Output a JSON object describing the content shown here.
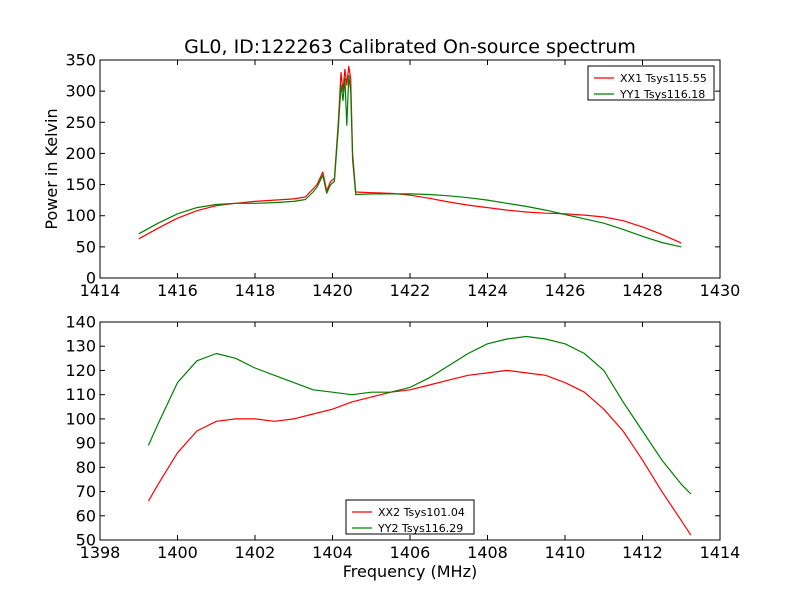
{
  "chart_data": [
    {
      "type": "line",
      "title": "GL0, ID:122263 Calibrated On-source spectrum",
      "xlabel": "",
      "ylabel": "Power in Kelvin",
      "xlim": [
        1414,
        1430
      ],
      "ylim": [
        0,
        350
      ],
      "xticks": [
        "1414",
        "1416",
        "1418",
        "1420",
        "1422",
        "1424",
        "1426",
        "1428",
        "1430"
      ],
      "yticks": [
        "0",
        "50",
        "100",
        "150",
        "200",
        "250",
        "300",
        "350"
      ],
      "legend_position": "top-right",
      "series": [
        {
          "name": "XX1 Tsys115.55",
          "color": "#ff0000",
          "x": [
            1415.0,
            1415.5,
            1416.0,
            1416.5,
            1417.0,
            1417.5,
            1418.0,
            1418.5,
            1419.0,
            1419.3,
            1419.5,
            1419.6,
            1419.75,
            1419.85,
            1419.95,
            1420.05,
            1420.15,
            1420.22,
            1420.27,
            1420.32,
            1420.37,
            1420.42,
            1420.47,
            1420.52,
            1420.6,
            1421.0,
            1421.5,
            1422.0,
            1422.5,
            1423.0,
            1423.5,
            1424.0,
            1424.5,
            1425.0,
            1425.5,
            1426.0,
            1426.5,
            1427.0,
            1427.5,
            1428.0,
            1428.5,
            1429.0
          ],
          "values": [
            63,
            80,
            96,
            108,
            116,
            120,
            123,
            125,
            127,
            130,
            143,
            150,
            170,
            140,
            155,
            160,
            250,
            330,
            300,
            335,
            310,
            340,
            320,
            200,
            138,
            137,
            136,
            133,
            128,
            122,
            117,
            113,
            109,
            106,
            104,
            103,
            101,
            98,
            92,
            82,
            70,
            56
          ]
        },
        {
          "name": "YY1 Tsys116.18",
          "color": "#008000",
          "x": [
            1415.0,
            1415.5,
            1416.0,
            1416.5,
            1417.0,
            1417.5,
            1418.0,
            1418.5,
            1419.0,
            1419.3,
            1419.5,
            1419.6,
            1419.75,
            1419.85,
            1419.95,
            1420.05,
            1420.15,
            1420.22,
            1420.27,
            1420.32,
            1420.37,
            1420.42,
            1420.47,
            1420.52,
            1420.6,
            1421.0,
            1421.5,
            1422.0,
            1422.5,
            1423.0,
            1423.5,
            1424.0,
            1424.5,
            1425.0,
            1425.5,
            1426.0,
            1426.5,
            1427.0,
            1427.5,
            1428.0,
            1428.5,
            1429.0
          ],
          "values": [
            71,
            88,
            103,
            113,
            118,
            120,
            120,
            121,
            123,
            126,
            138,
            146,
            165,
            136,
            150,
            155,
            240,
            310,
            285,
            320,
            245,
            325,
            300,
            190,
            134,
            135,
            135,
            135,
            134,
            132,
            129,
            125,
            120,
            115,
            109,
            102,
            95,
            88,
            78,
            67,
            57,
            50
          ]
        }
      ]
    },
    {
      "type": "line",
      "title": "",
      "xlabel": "Frequency (MHz)",
      "ylabel": "",
      "xlim": [
        1398,
        1414
      ],
      "ylim": [
        50,
        140
      ],
      "xticks": [
        "1398",
        "1400",
        "1402",
        "1404",
        "1406",
        "1408",
        "1410",
        "1412",
        "1414"
      ],
      "yticks": [
        "50",
        "60",
        "70",
        "80",
        "90",
        "100",
        "110",
        "120",
        "130",
        "140"
      ],
      "legend_position": "bottom-center",
      "series": [
        {
          "name": "XX2 Tsys101.04",
          "color": "#ff0000",
          "x": [
            1399.25,
            1399.5,
            1400.0,
            1400.5,
            1401.0,
            1401.5,
            1402.0,
            1402.5,
            1403.0,
            1403.5,
            1404.0,
            1404.5,
            1405.0,
            1405.5,
            1406.0,
            1406.5,
            1407.0,
            1407.5,
            1408.0,
            1408.5,
            1409.0,
            1409.5,
            1410.0,
            1410.5,
            1411.0,
            1411.5,
            1412.0,
            1412.5,
            1413.0,
            1413.25
          ],
          "values": [
            66,
            73,
            86,
            95,
            99,
            100,
            100,
            99,
            100,
            102,
            104,
            107,
            109,
            111,
            112,
            114,
            116,
            118,
            119,
            120,
            119,
            118,
            115,
            111,
            104,
            95,
            83,
            70,
            58,
            52
          ]
        },
        {
          "name": "YY2 Tsys116.29",
          "color": "#008000",
          "x": [
            1399.25,
            1399.5,
            1400.0,
            1400.5,
            1401.0,
            1401.5,
            1402.0,
            1402.5,
            1403.0,
            1403.5,
            1404.0,
            1404.5,
            1405.0,
            1405.5,
            1406.0,
            1406.5,
            1407.0,
            1407.5,
            1408.0,
            1408.5,
            1409.0,
            1409.5,
            1410.0,
            1410.5,
            1411.0,
            1411.5,
            1412.0,
            1412.5,
            1413.0,
            1413.25
          ],
          "values": [
            89,
            98,
            115,
            124,
            127,
            125,
            121,
            118,
            115,
            112,
            111,
            110,
            111,
            111,
            113,
            117,
            122,
            127,
            131,
            133,
            134,
            133,
            131,
            127,
            120,
            107,
            95,
            83,
            73,
            69
          ]
        }
      ]
    }
  ]
}
